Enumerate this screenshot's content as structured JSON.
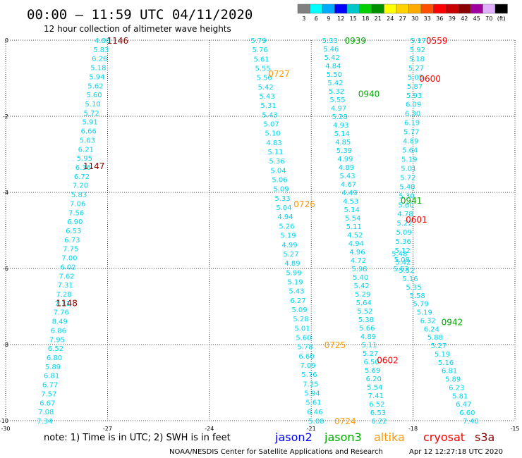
{
  "header": {
    "title": "00:00 – 11:59 UTC 04/11/2020",
    "subtitle": "12 hour collection of altimeter wave heights"
  },
  "color_scale": {
    "colors": [
      "#808080",
      "#00ffff",
      "#00aaff",
      "#0000ff",
      "#00c8c8",
      "#00d000",
      "#009000",
      "#ffff00",
      "#ffd200",
      "#ffaa00",
      "#ff5000",
      "#ff0000",
      "#c80000",
      "#8b0000",
      "#a000a0",
      "#e0b0ff",
      "#000000"
    ],
    "labels": [
      "3",
      "6",
      "9",
      "12",
      "15",
      "18",
      "21",
      "24",
      "27",
      "30",
      "33",
      "36",
      "39",
      "42",
      "45",
      "70",
      "(ft)"
    ]
  },
  "footer": {
    "note": "note: 1) Time is in UTC; 2) SWH is in feet",
    "satellites": [
      {
        "name": "jason2",
        "color": "#0000ff"
      },
      {
        "name": "jason3",
        "color": "#00aa00"
      },
      {
        "name": "altika",
        "color": "#ff9900"
      },
      {
        "name": "cryosat",
        "color": "#ff0000"
      },
      {
        "name": "s3a",
        "color": "#8b0000"
      }
    ],
    "credit": "NOAA/NESDIS Center for Satellite Applications and Research",
    "timestamp": "Apr 12 12:27:18 UTC 2020"
  },
  "chart_data": {
    "type": "scatter",
    "x_ticks": [
      "-30",
      "-27",
      "-24",
      "-21",
      "-18",
      "-15"
    ],
    "y_ticks": [
      "0",
      "-2",
      "-4",
      "-6",
      "-8",
      "-10"
    ],
    "xlim": [
      -30,
      -15
    ],
    "ylim": [
      -10,
      0
    ],
    "grid": true,
    "value_color": "#00d5ee",
    "tracks": [
      {
        "name": "s3a-1",
        "x0": -27.15,
        "y0": 0.0,
        "x1": -28.85,
        "y1": -10.0,
        "values": [
          "4.86",
          "5.83",
          "6.26",
          "5.18",
          "5.94",
          "5.62",
          "5.60",
          "5.10",
          "5.72",
          "5.91",
          "6.66",
          "5.63",
          "6.21",
          "5.95",
          "6.36",
          "6.72",
          "7.20",
          "5.83",
          "7.06",
          "7.56",
          "6.90",
          "6.53",
          "6.73",
          "7.75",
          "7.00",
          "6.02",
          "7.62",
          "7.31",
          "7.28",
          "7.31",
          "7.76",
          "8.49",
          "6.86",
          "7.95",
          "6.52",
          "6.80",
          "5.89",
          "6.81",
          "6.77",
          "7.57",
          "6.67",
          "7.08",
          "7.34"
        ]
      },
      {
        "name": "altika-1",
        "x0": -22.55,
        "y0": 0.0,
        "x1": -20.85,
        "y1": -10.0,
        "values": [
          "5.79",
          "5.76",
          "5.61",
          "5.55",
          "5.56",
          "5.42",
          "5.43",
          "5.31",
          "5.43",
          "5.07",
          "5.10",
          "4.83",
          "5.11",
          "5.36",
          "5.04",
          "5.06",
          "5.09",
          "5.33",
          "5.04",
          "4.94",
          "5.26",
          "5.19",
          "4.99",
          "5.27",
          "4.89",
          "5.99",
          "5.19",
          "5.43",
          "6.27",
          "5.09",
          "5.28",
          "5.01",
          "5.60",
          "5.78",
          "6.60",
          "7.09",
          "5.76",
          "7.25",
          "5.94",
          "5.61",
          "6.46",
          "5.08"
        ]
      },
      {
        "name": "jason3-1",
        "x0": -20.45,
        "y0": 0.0,
        "x1": -19.0,
        "y1": -10.0,
        "values": [
          "5.33",
          "5.46",
          "5.42",
          "4.84",
          "5.50",
          "5.42",
          "5.32",
          "5.55",
          "4.97",
          "5.28",
          "4.93",
          "5.14",
          "4.85",
          "5.39",
          "4.99",
          "4.89",
          "5.43",
          "4.67",
          "4.49",
          "4.53",
          "5.14",
          "5.54",
          "5.11",
          "4.52",
          "4.94",
          "4.96",
          "4.72",
          "5.98",
          "5.40",
          "5.42",
          "5.29",
          "5.64",
          "5.52",
          "5.38",
          "5.66",
          "4.89",
          "5.11",
          "5.27",
          "6.50",
          "5.69",
          "6.20",
          "5.54",
          "7.41",
          "6.52",
          "6.53",
          "6.22"
        ]
      },
      {
        "name": "cryosat-1",
        "x0": -17.85,
        "y0": 0.0,
        "x1": -18.35,
        "y1": -6.0,
        "values": [
          "5.17",
          "5.92",
          "5.18",
          "5.27",
          "5.05",
          "5.87",
          "5.93",
          "6.09",
          "6.30",
          "6.19",
          "5.77",
          "4.89",
          "5.64",
          "5.19",
          "5.01",
          "5.72",
          "5.40",
          "5.30",
          "5.60",
          "4.78",
          "5.22",
          "5.09",
          "5.36",
          "5.12",
          "5.08",
          "5.52"
        ]
      },
      {
        "name": "jason3-2",
        "x0": -18.4,
        "y0": -5.6,
        "x1": -16.3,
        "y1": -10.0,
        "values": [
          "5.48",
          "5.42",
          "5.52",
          "5.16",
          "5.35",
          "5.58",
          "5.79",
          "5.19",
          "6.32",
          "6.24",
          "5.88",
          "5.27",
          "5.19",
          "5.16",
          "6.81",
          "5.89",
          "6.23",
          "5.81",
          "6.47",
          "6.60",
          "7.40"
        ]
      }
    ],
    "time_labels": [
      {
        "text": "1146",
        "sat": "s3a",
        "x": -26.7,
        "y": 0.0
      },
      {
        "text": "1147",
        "sat": "s3a",
        "x": -27.4,
        "y": -3.3
      },
      {
        "text": "1148",
        "sat": "s3a",
        "x": -28.2,
        "y": -6.9
      },
      {
        "text": "0727",
        "sat": "altika",
        "x": -21.95,
        "y": -0.87
      },
      {
        "text": "0726",
        "sat": "altika",
        "x": -21.2,
        "y": -4.3
      },
      {
        "text": "0725",
        "sat": "altika",
        "x": -20.3,
        "y": -8.0
      },
      {
        "text": "0724",
        "sat": "altika",
        "x": -20.0,
        "y": -10.0
      },
      {
        "text": "0939",
        "sat": "jason3",
        "x": -19.7,
        "y": 0.0
      },
      {
        "text": "0940",
        "sat": "jason3",
        "x": -19.3,
        "y": -1.4
      },
      {
        "text": "0941",
        "sat": "jason3",
        "x": -18.05,
        "y": -4.2
      },
      {
        "text": "0942",
        "sat": "jason3",
        "x": -16.85,
        "y": -7.4
      },
      {
        "text": "0559",
        "sat": "cryosat",
        "x": -17.3,
        "y": 0.0
      },
      {
        "text": "0600",
        "sat": "cryosat",
        "x": -17.5,
        "y": -1.0
      },
      {
        "text": "0601",
        "sat": "cryosat",
        "x": -17.9,
        "y": -4.7
      },
      {
        "text": "0602",
        "sat": "cryosat",
        "x": -18.75,
        "y": -8.4
      }
    ]
  }
}
